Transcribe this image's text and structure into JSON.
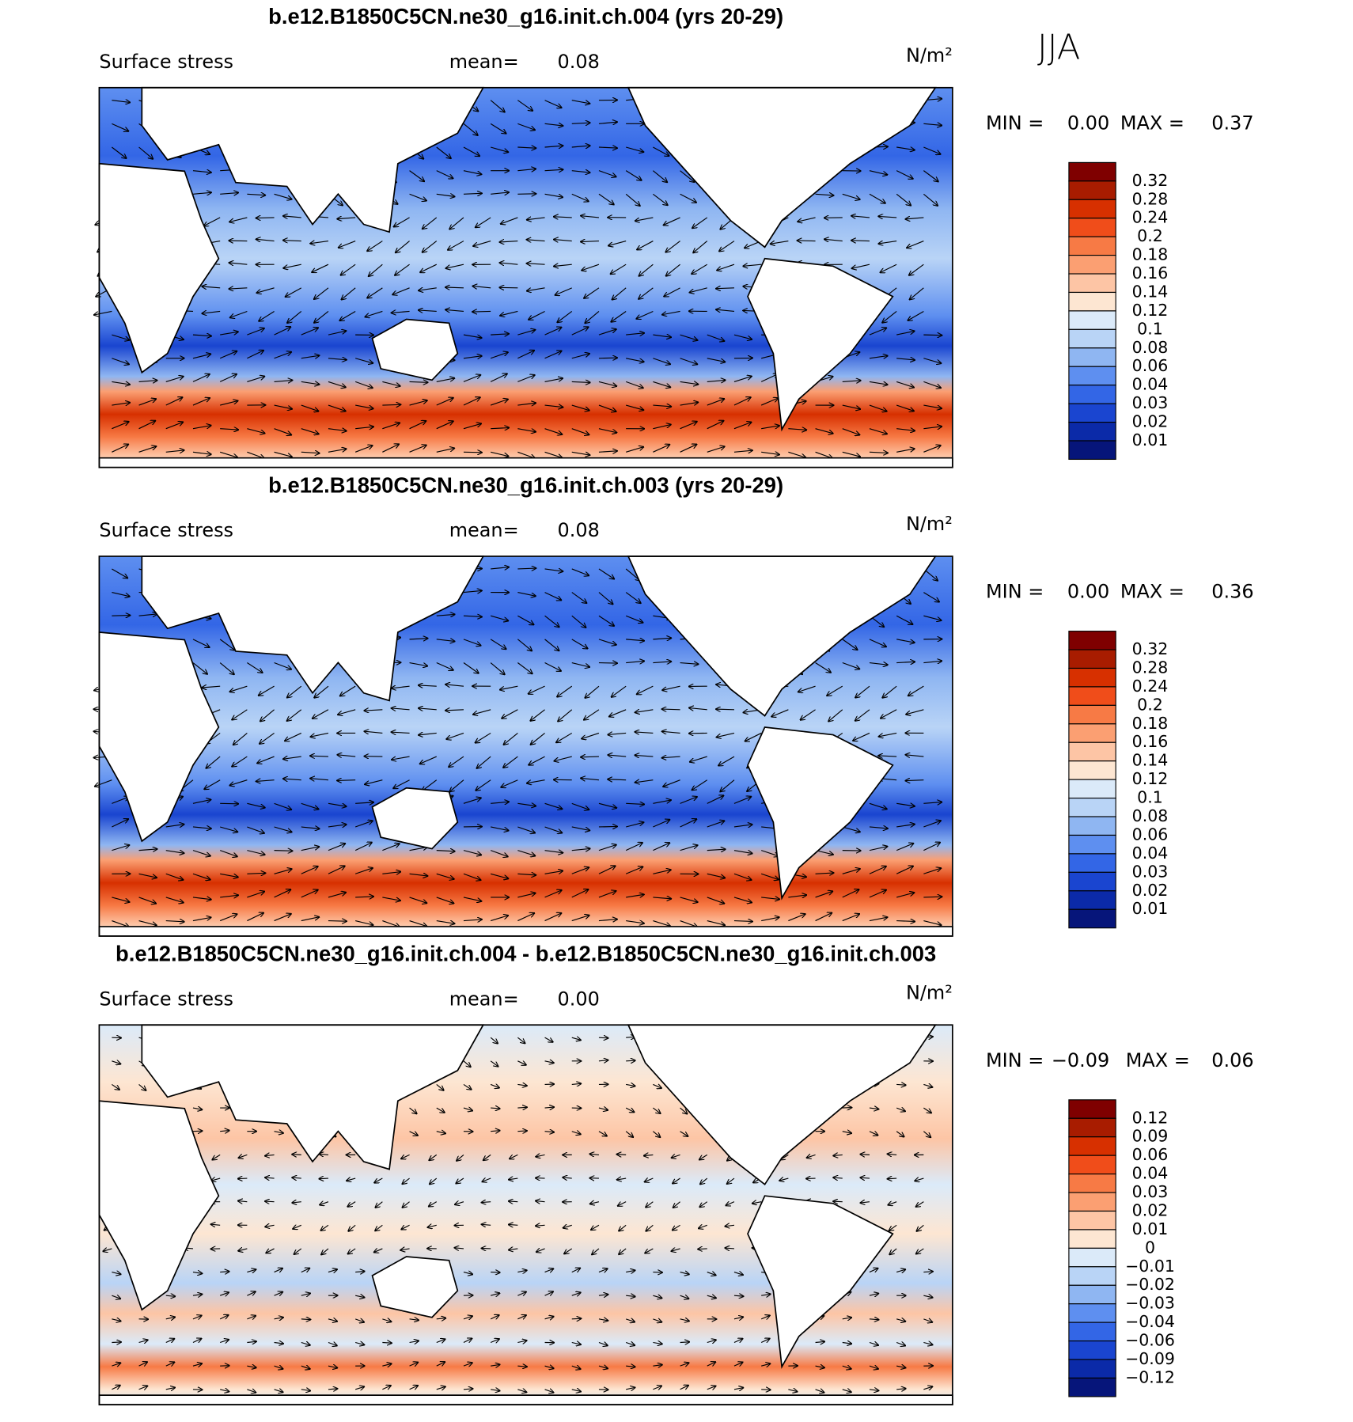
{
  "season": "JJA",
  "colorbar_colors": [
    "#7f0000",
    "#a81c00",
    "#d73000",
    "#f04d1a",
    "#f77a45",
    "#fb9f72",
    "#fdc5a5",
    "#fde6d2",
    "#dbeaf9",
    "#b9d4f6",
    "#8fb6f2",
    "#5e8ff0",
    "#3366e6",
    "#1a45d0",
    "#0b2aa8",
    "#06157a"
  ],
  "panels": [
    {
      "title": "b.e12.B1850C5CN.ne30_g16.init.ch.004 (yrs 20-29)",
      "variable": "Surface stress",
      "mean_label": "mean=",
      "mean": "0.08",
      "units": "N/m²",
      "min_label": "MIN =",
      "min": "0.00",
      "max_label": "MAX =",
      "max": "0.37",
      "colorbar_labels": [
        "0.32",
        "0.28",
        "0.24",
        "0.2",
        "0.18",
        "0.16",
        "0.14",
        "0.12",
        "0.1",
        "0.08",
        "0.06",
        "0.04",
        "0.03",
        "0.02",
        "0.01"
      ]
    },
    {
      "title": "b.e12.B1850C5CN.ne30_g16.init.ch.003 (yrs 20-29)",
      "variable": "Surface stress",
      "mean_label": "mean=",
      "mean": "0.08",
      "units": "N/m²",
      "min_label": "MIN =",
      "min": "0.00",
      "max_label": "MAX =",
      "max": "0.36",
      "colorbar_labels": [
        "0.32",
        "0.28",
        "0.24",
        "0.2",
        "0.18",
        "0.16",
        "0.14",
        "0.12",
        "0.1",
        "0.08",
        "0.06",
        "0.04",
        "0.03",
        "0.02",
        "0.01"
      ]
    },
    {
      "title": "b.e12.B1850C5CN.ne30_g16.init.ch.004 - b.e12.B1850C5CN.ne30_g16.init.ch.003",
      "variable": "Surface stress",
      "mean_label": "mean=",
      "mean": "0.00",
      "units": "N/m²",
      "min_label": "MIN =",
      "min": "−0.09",
      "max_label": "MAX =",
      "max": "0.06",
      "colorbar_labels": [
        "0.12",
        "0.09",
        "0.06",
        "0.04",
        "0.03",
        "0.02",
        "0.01",
        "0",
        "−0.01",
        "−0.02",
        "−0.03",
        "−0.04",
        "−0.06",
        "−0.09",
        "−0.12"
      ]
    }
  ]
}
